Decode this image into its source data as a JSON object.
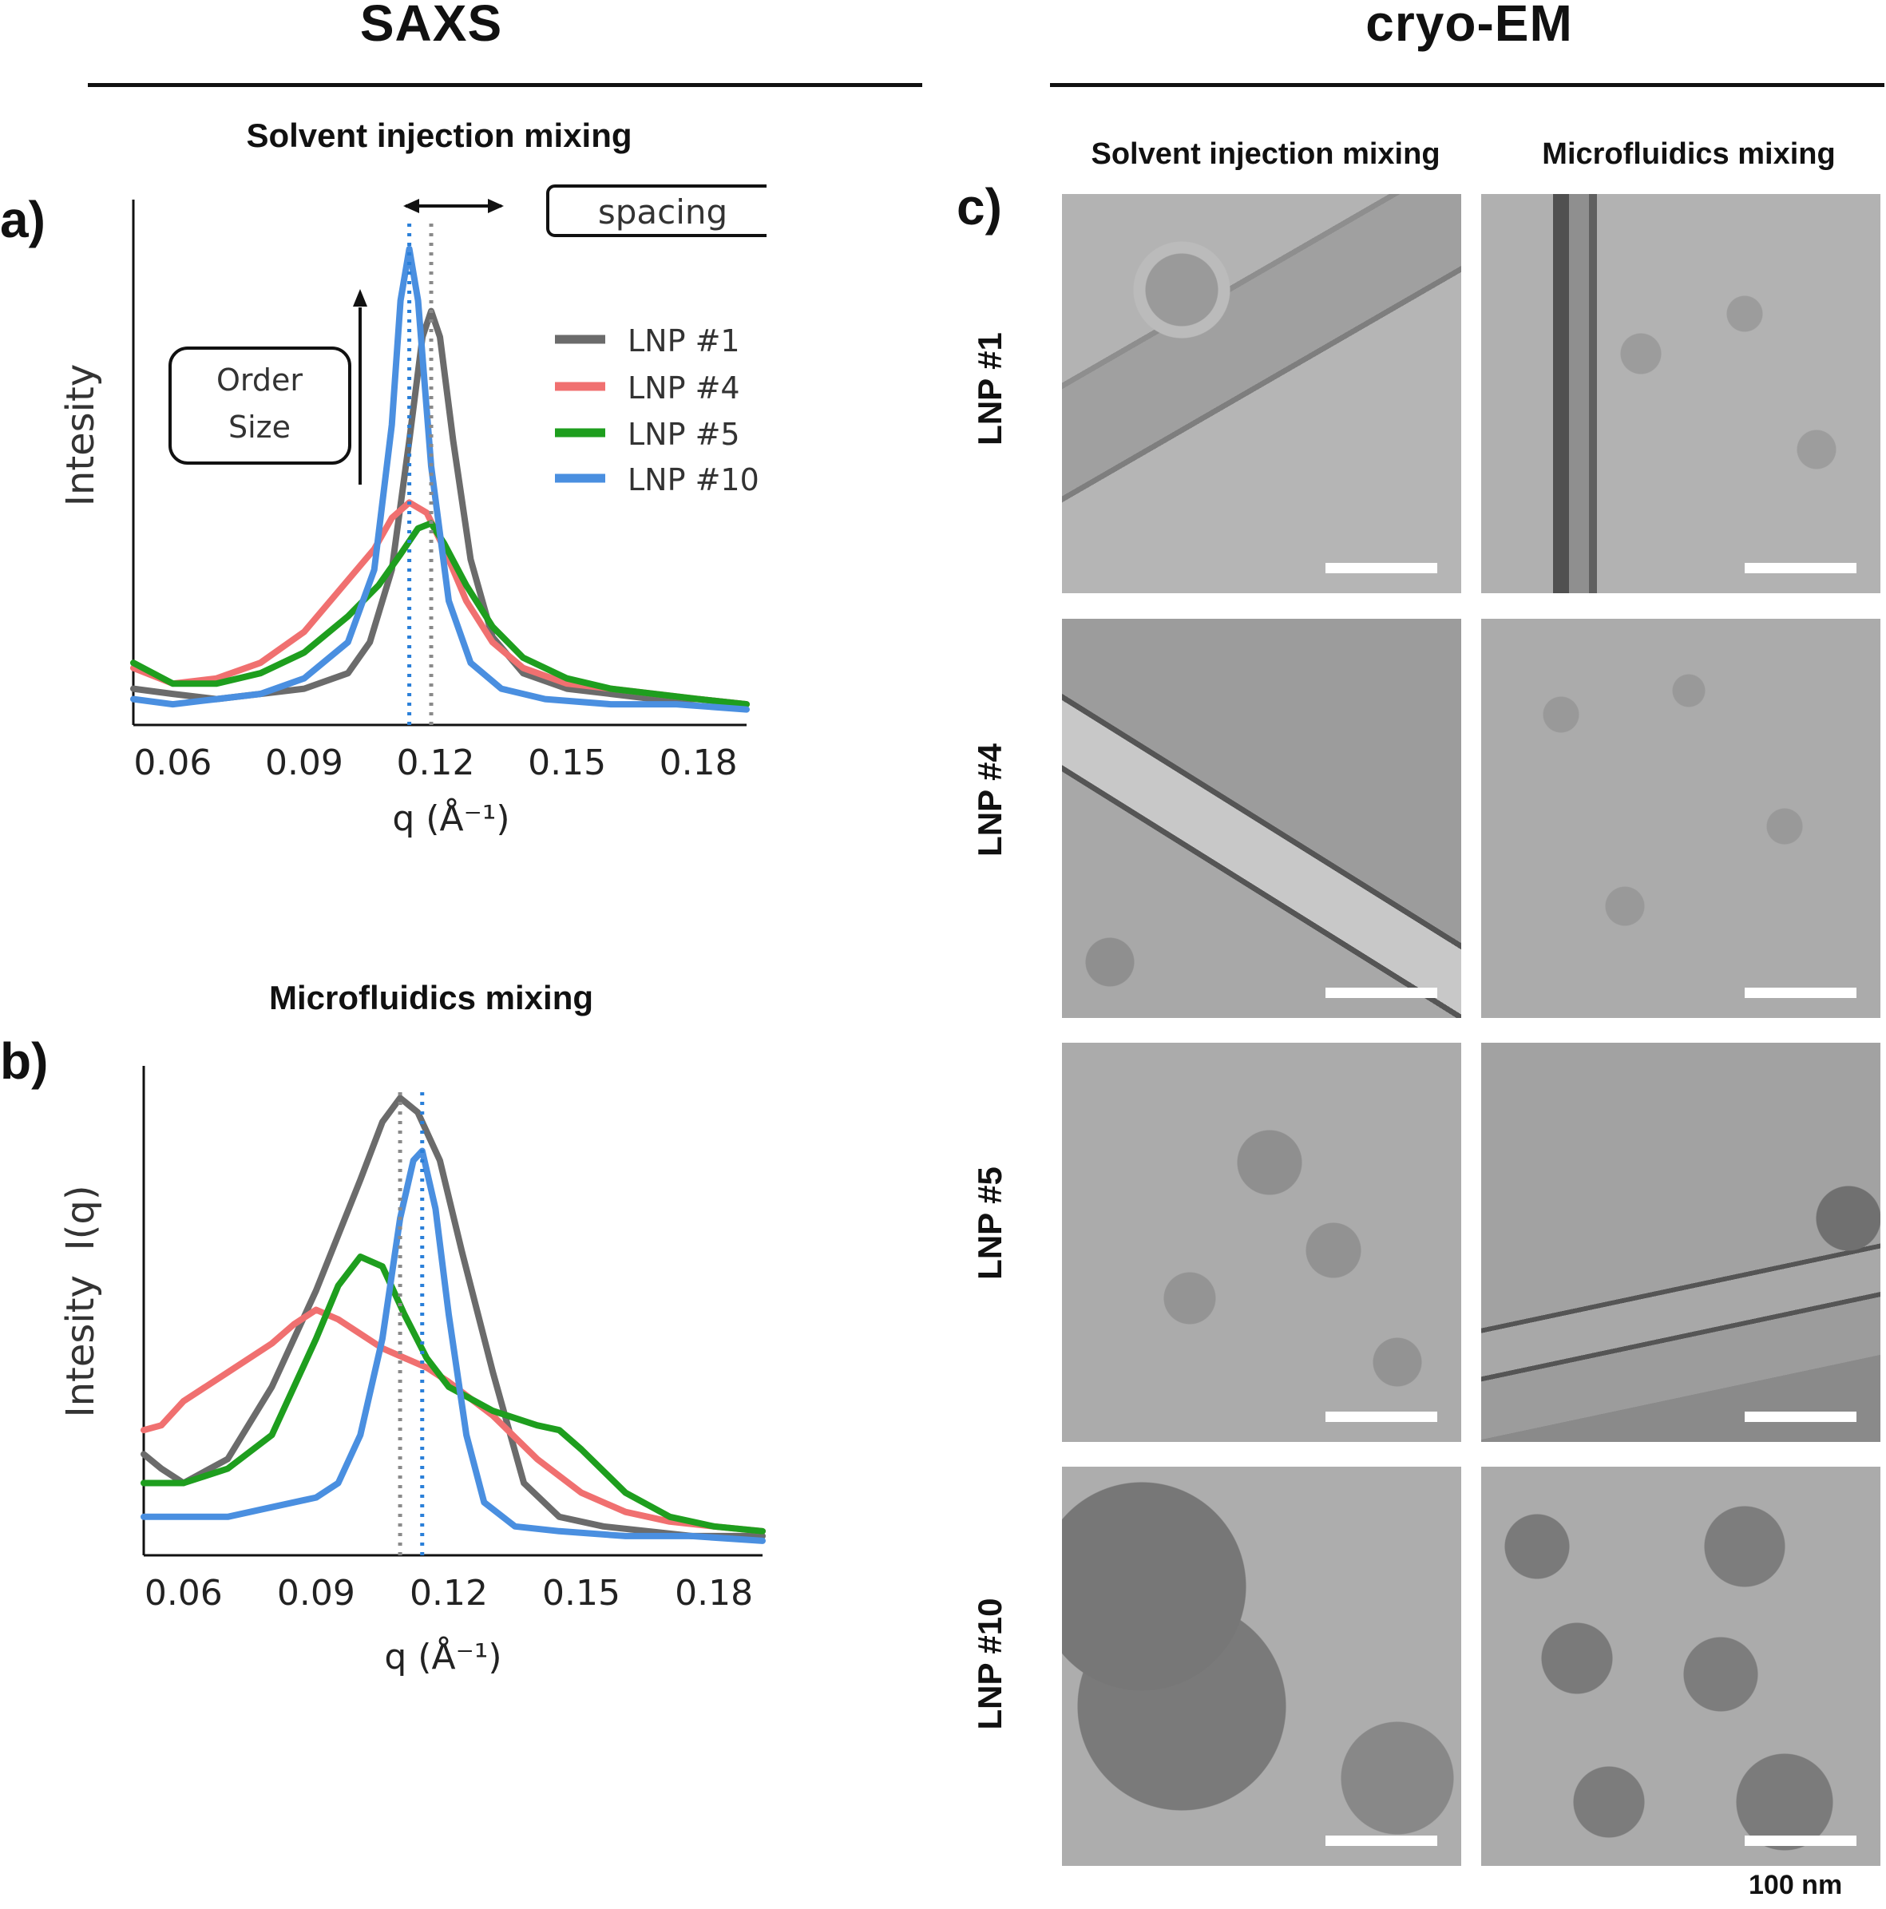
{
  "sections": {
    "saxs_title": "SAXS",
    "cryoem_title": "cryo-EM"
  },
  "panel_labels": {
    "a": "a)",
    "b": "b)",
    "c": "c)"
  },
  "colors": {
    "LNP #1": "#6b6b6b",
    "LNP #4": "#f07070",
    "LNP #5": "#1e9e1e",
    "LNP #10": "#4a8fe0"
  },
  "chart_data": [
    {
      "type": "line",
      "panel": "a)",
      "title": "Solvent injection mixing",
      "xlabel": "q (Å⁻¹)",
      "ylabel": "Intesity",
      "xlim": [
        0.051,
        0.191
      ],
      "ylim": [
        0,
        1
      ],
      "x_ticks": [
        0.06,
        0.09,
        0.12,
        0.15,
        0.18
      ],
      "x_tick_labels": [
        "0.06",
        "0.09",
        "0.12",
        "0.15",
        "0.18"
      ],
      "legend": [
        "LNP #1",
        "LNP #4",
        "LNP #5",
        "LNP #10"
      ],
      "annotations": {
        "spacing": "spacing",
        "order_size": [
          "Order",
          "Size"
        ]
      },
      "peak_lines": [
        {
          "series": "LNP #10",
          "x": 0.114
        },
        {
          "series": "LNP #1",
          "x": 0.119
        }
      ],
      "series": [
        {
          "name": "LNP #1",
          "points": [
            [
              0.051,
              0.07
            ],
            [
              0.06,
              0.06
            ],
            [
              0.07,
              0.05
            ],
            [
              0.08,
              0.06
            ],
            [
              0.09,
              0.07
            ],
            [
              0.1,
              0.1
            ],
            [
              0.105,
              0.16
            ],
            [
              0.11,
              0.3
            ],
            [
              0.114,
              0.55
            ],
            [
              0.117,
              0.75
            ],
            [
              0.119,
              0.8
            ],
            [
              0.121,
              0.75
            ],
            [
              0.124,
              0.55
            ],
            [
              0.128,
              0.32
            ],
            [
              0.133,
              0.17
            ],
            [
              0.14,
              0.1
            ],
            [
              0.15,
              0.07
            ],
            [
              0.16,
              0.06
            ],
            [
              0.17,
              0.05
            ],
            [
              0.18,
              0.05
            ],
            [
              0.191,
              0.04
            ]
          ]
        },
        {
          "name": "LNP #4",
          "points": [
            [
              0.051,
              0.11
            ],
            [
              0.06,
              0.08
            ],
            [
              0.07,
              0.09
            ],
            [
              0.08,
              0.12
            ],
            [
              0.09,
              0.18
            ],
            [
              0.1,
              0.28
            ],
            [
              0.106,
              0.34
            ],
            [
              0.11,
              0.4
            ],
            [
              0.114,
              0.43
            ],
            [
              0.118,
              0.41
            ],
            [
              0.122,
              0.34
            ],
            [
              0.127,
              0.24
            ],
            [
              0.133,
              0.16
            ],
            [
              0.14,
              0.11
            ],
            [
              0.15,
              0.08
            ],
            [
              0.16,
              0.07
            ],
            [
              0.17,
              0.06
            ],
            [
              0.18,
              0.05
            ],
            [
              0.191,
              0.04
            ]
          ]
        },
        {
          "name": "LNP #5",
          "points": [
            [
              0.051,
              0.12
            ],
            [
              0.06,
              0.08
            ],
            [
              0.07,
              0.08
            ],
            [
              0.08,
              0.1
            ],
            [
              0.09,
              0.14
            ],
            [
              0.1,
              0.21
            ],
            [
              0.107,
              0.27
            ],
            [
              0.112,
              0.33
            ],
            [
              0.116,
              0.38
            ],
            [
              0.119,
              0.39
            ],
            [
              0.122,
              0.35
            ],
            [
              0.127,
              0.27
            ],
            [
              0.133,
              0.19
            ],
            [
              0.14,
              0.13
            ],
            [
              0.15,
              0.09
            ],
            [
              0.16,
              0.07
            ],
            [
              0.17,
              0.06
            ],
            [
              0.18,
              0.05
            ],
            [
              0.191,
              0.04
            ]
          ]
        },
        {
          "name": "LNP #10",
          "points": [
            [
              0.051,
              0.05
            ],
            [
              0.06,
              0.04
            ],
            [
              0.07,
              0.05
            ],
            [
              0.08,
              0.06
            ],
            [
              0.09,
              0.09
            ],
            [
              0.1,
              0.16
            ],
            [
              0.106,
              0.3
            ],
            [
              0.11,
              0.58
            ],
            [
              0.112,
              0.82
            ],
            [
              0.114,
              0.92
            ],
            [
              0.116,
              0.82
            ],
            [
              0.119,
              0.5
            ],
            [
              0.123,
              0.24
            ],
            [
              0.128,
              0.12
            ],
            [
              0.135,
              0.07
            ],
            [
              0.145,
              0.05
            ],
            [
              0.16,
              0.04
            ],
            [
              0.175,
              0.04
            ],
            [
              0.191,
              0.03
            ]
          ]
        }
      ]
    },
    {
      "type": "line",
      "panel": "b)",
      "title": "Microfluidics mixing",
      "xlabel": "q (Å⁻¹)",
      "ylabel": "Intesity  I(q)",
      "xlim": [
        0.051,
        0.191
      ],
      "ylim": [
        0,
        1
      ],
      "x_ticks": [
        0.06,
        0.09,
        0.12,
        0.15,
        0.18
      ],
      "x_tick_labels": [
        "0.06",
        "0.09",
        "0.12",
        "0.15",
        "0.18"
      ],
      "peak_lines": [
        {
          "series": "LNP #1",
          "x": 0.109
        },
        {
          "series": "LNP #10",
          "x": 0.114
        }
      ],
      "series": [
        {
          "name": "LNP #1",
          "points": [
            [
              0.051,
              0.21
            ],
            [
              0.055,
              0.18
            ],
            [
              0.06,
              0.15
            ],
            [
              0.07,
              0.2
            ],
            [
              0.08,
              0.35
            ],
            [
              0.09,
              0.55
            ],
            [
              0.1,
              0.78
            ],
            [
              0.105,
              0.9
            ],
            [
              0.109,
              0.95
            ],
            [
              0.113,
              0.92
            ],
            [
              0.118,
              0.82
            ],
            [
              0.123,
              0.63
            ],
            [
              0.13,
              0.38
            ],
            [
              0.137,
              0.15
            ],
            [
              0.145,
              0.08
            ],
            [
              0.155,
              0.06
            ],
            [
              0.165,
              0.05
            ],
            [
              0.175,
              0.04
            ],
            [
              0.191,
              0.04
            ]
          ]
        },
        {
          "name": "LNP #4",
          "points": [
            [
              0.051,
              0.26
            ],
            [
              0.055,
              0.27
            ],
            [
              0.06,
              0.32
            ],
            [
              0.07,
              0.38
            ],
            [
              0.08,
              0.44
            ],
            [
              0.085,
              0.48
            ],
            [
              0.09,
              0.51
            ],
            [
              0.095,
              0.49
            ],
            [
              0.1,
              0.46
            ],
            [
              0.105,
              0.43
            ],
            [
              0.11,
              0.41
            ],
            [
              0.115,
              0.39
            ],
            [
              0.12,
              0.36
            ],
            [
              0.13,
              0.29
            ],
            [
              0.14,
              0.2
            ],
            [
              0.15,
              0.13
            ],
            [
              0.16,
              0.09
            ],
            [
              0.17,
              0.07
            ],
            [
              0.18,
              0.06
            ],
            [
              0.191,
              0.05
            ]
          ]
        },
        {
          "name": "LNP #5",
          "points": [
            [
              0.051,
              0.15
            ],
            [
              0.06,
              0.15
            ],
            [
              0.07,
              0.18
            ],
            [
              0.08,
              0.25
            ],
            [
              0.09,
              0.45
            ],
            [
              0.095,
              0.56
            ],
            [
              0.1,
              0.62
            ],
            [
              0.105,
              0.6
            ],
            [
              0.11,
              0.5
            ],
            [
              0.115,
              0.41
            ],
            [
              0.12,
              0.35
            ],
            [
              0.13,
              0.3
            ],
            [
              0.14,
              0.27
            ],
            [
              0.145,
              0.26
            ],
            [
              0.15,
              0.22
            ],
            [
              0.16,
              0.13
            ],
            [
              0.17,
              0.08
            ],
            [
              0.18,
              0.06
            ],
            [
              0.191,
              0.05
            ]
          ]
        },
        {
          "name": "LNP #10",
          "points": [
            [
              0.051,
              0.08
            ],
            [
              0.06,
              0.08
            ],
            [
              0.07,
              0.08
            ],
            [
              0.08,
              0.1
            ],
            [
              0.09,
              0.12
            ],
            [
              0.095,
              0.15
            ],
            [
              0.1,
              0.25
            ],
            [
              0.105,
              0.45
            ],
            [
              0.109,
              0.7
            ],
            [
              0.112,
              0.82
            ],
            [
              0.114,
              0.84
            ],
            [
              0.117,
              0.72
            ],
            [
              0.12,
              0.5
            ],
            [
              0.124,
              0.25
            ],
            [
              0.128,
              0.11
            ],
            [
              0.135,
              0.06
            ],
            [
              0.145,
              0.05
            ],
            [
              0.16,
              0.04
            ],
            [
              0.175,
              0.04
            ],
            [
              0.191,
              0.03
            ]
          ]
        }
      ]
    }
  ],
  "cryo_em": {
    "column_headers": [
      "Solvent injection mixing",
      "Microfluidics mixing"
    ],
    "row_labels": [
      "LNP #1",
      "LNP #4",
      "LNP #5",
      "LNP #10"
    ],
    "scale_label": "100 nm"
  }
}
